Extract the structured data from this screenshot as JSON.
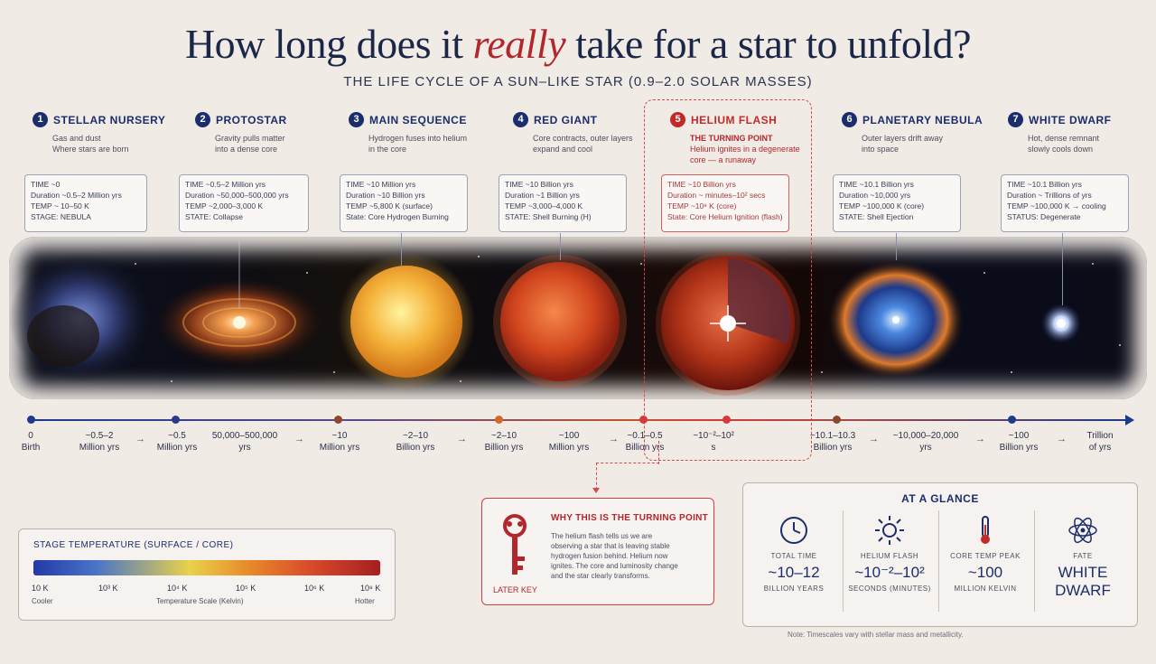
{
  "header": {
    "title_before": "How long does it",
    "title_em": "really",
    "title_after": "take for a star to unfold?",
    "subtitle": "THE LIFE CYCLE OF A SUN–LIKE STAR (0.9–2.0 SOLAR MASSES)"
  },
  "stages": [
    {
      "num": "1",
      "name": "STELLAR NURSERY",
      "desc": [
        "Gas and dust",
        "Where stars are born"
      ],
      "info": [
        "TIME ~0",
        "Duration ~0.5–2 Million yrs",
        "TEMP ~ 10–50 K",
        "STAGE: NEBULA"
      ]
    },
    {
      "num": "2",
      "name": "PROTOSTAR",
      "desc": [
        "Gravity pulls matter",
        "into a dense core"
      ],
      "info": [
        "TIME ~0.5–2 Million yrs",
        "Duration ~50,000–500,000 yrs",
        "TEMP ~2,000–3,000 K",
        "STATE: Collapse"
      ]
    },
    {
      "num": "3",
      "name": "MAIN SEQUENCE",
      "desc": [
        "Hydrogen fuses into helium",
        "in the core"
      ],
      "info": [
        "TIME ~10 Million yrs",
        "Duration ~10 Billion yrs",
        "TEMP ~5,800 K (surface)",
        "State: Core Hydrogen Burning"
      ]
    },
    {
      "num": "4",
      "name": "RED GIANT",
      "desc": [
        "Core contracts, outer layers",
        "expand and cool"
      ],
      "info": [
        "TIME ~10 Billion yrs",
        "Duration ~1 Billion yrs",
        "TEMP ~3,000–4,000 K",
        "STATE: Shell Burning (H)"
      ]
    },
    {
      "num": "5",
      "name": "HELIUM FLASH",
      "desc": [
        "THE TURNING POINT",
        "Helium ignites in a degenerate",
        "core — a runaway"
      ],
      "info": [
        "TIME ~10 Billion yrs",
        "Duration ~ minutes–10² secs",
        "TEMP ~10⁸ K (core)",
        "State: Core Helium Ignition (flash)"
      ]
    },
    {
      "num": "6",
      "name": "PLANETARY NEBULA",
      "desc": [
        "Outer layers drift away",
        "into space"
      ],
      "info": [
        "TIME ~10.1 Billion yrs",
        "Duration ~10,000 yrs",
        "TEMP ~100,000 K (core)",
        "STATE: Shell Ejection"
      ]
    },
    {
      "num": "7",
      "name": "WHITE DWARF",
      "desc": [
        "Hot, dense remnant",
        "slowly cools down"
      ],
      "info": [
        "TIME ~10.1 Billion yrs",
        "Duration ~ Trillions of yrs",
        "TEMP ~100,000 K → cooling",
        "STATUS: Degenerate"
      ]
    }
  ],
  "timeline": [
    {
      "top": "0",
      "bottom": "Birth"
    },
    {
      "top": "~0.5–2",
      "bottom": "Million yrs"
    },
    {
      "top": "~0.5",
      "bottom": "Million yrs"
    },
    {
      "top": "50,000–500,000",
      "bottom": "yrs"
    },
    {
      "top": "~10",
      "bottom": "Million yrs"
    },
    {
      "top": "~2–10",
      "bottom": "Billion yrs"
    },
    {
      "top": "~2–10",
      "bottom": "Billion yrs"
    },
    {
      "top": "~100",
      "bottom": "Million yrs"
    },
    {
      "top": "~0.1–0.5",
      "bottom": "Billion yrs"
    },
    {
      "top": "~10⁻²–10²",
      "bottom": "s"
    },
    {
      "top": "~10.1–10.3",
      "bottom": "Billion yrs"
    },
    {
      "top": "~10,000–20,000",
      "bottom": "yrs"
    },
    {
      "top": "~100",
      "bottom": "Billion yrs"
    },
    {
      "top": "Trillion",
      "bottom": "of yrs"
    }
  ],
  "legend": {
    "title": "STAGE TEMPERATURE (SURFACE / CORE)",
    "ticks": [
      "10 K",
      "10³ K",
      "10⁴ K",
      "10⁵ K",
      "10⁶ K",
      "10⁸ K"
    ],
    "cooler": "Cooler",
    "scale": "Temperature Scale (Kelvin)",
    "hotter": "Hotter"
  },
  "keybox": {
    "title": "WHY THIS IS THE TURNING POINT",
    "text": [
      "The helium flash tells us we are",
      "observing a star that is leaving stable",
      "hydrogen fusion behind. Helium now",
      "ignites. The core and luminosity change",
      "and the star clearly transforms."
    ],
    "label": "LATER KEY"
  },
  "glance": {
    "title": "AT A GLANCE",
    "cols": [
      {
        "label": "TOTAL TIME",
        "value": "~10–12",
        "unit": "BILLION YEARS"
      },
      {
        "label": "HELIUM FLASH",
        "value": "~10⁻²–10²",
        "unit": "SECONDS (MINUTES)"
      },
      {
        "label": "CORE TEMP PEAK",
        "value": "~100",
        "unit": "MILLION KELVIN"
      },
      {
        "label": "FATE",
        "value": "WHITE DWARF",
        "unit": ""
      }
    ]
  },
  "footnote": "Note: Timescales vary with stellar mass and metallicity.",
  "colors": {
    "navy": "#1b2d6b",
    "red": "#c22a2a",
    "background": "#f1ebe6"
  }
}
